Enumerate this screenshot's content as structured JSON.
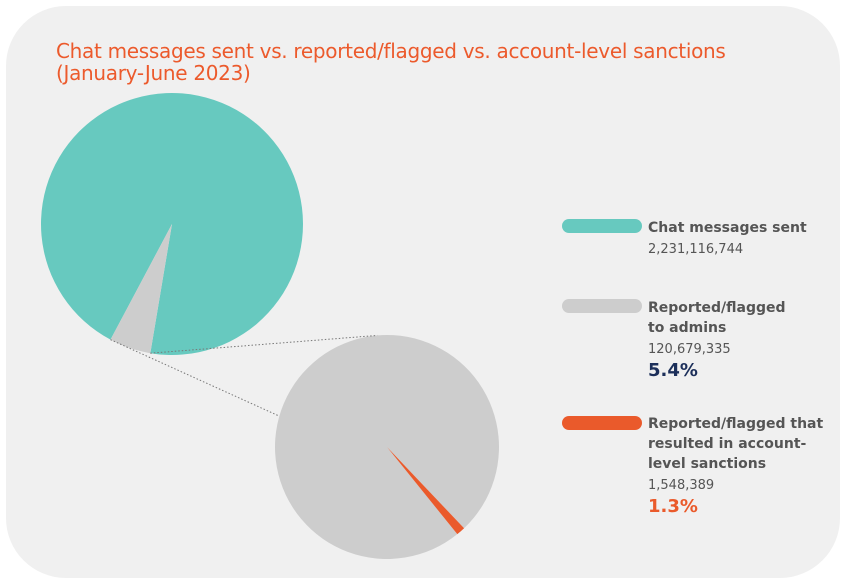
{
  "colors": {
    "background": "#f0f0f0",
    "title": "#ec5a2c",
    "teal": "#67c9bf",
    "gray": "#cdcdcd",
    "orange": "#ea5a2b",
    "navy": "#1c2f5a",
    "text": "#555555"
  },
  "chart_data": {
    "type": "pie",
    "title_lines": [
      "Chat messages sent vs. reported/flagged vs. account-level sanctions",
      "(January-June 2023)"
    ],
    "main_pie": {
      "slices": [
        {
          "name": "Chat messages sent",
          "value": 2231116744,
          "color": "#67c9bf"
        },
        {
          "name": "Reported/flagged to admins",
          "value": 120679335,
          "percent": 5.4,
          "color": "#cdcdcd"
        }
      ]
    },
    "detail_pie": {
      "slices": [
        {
          "name": "Reported/flagged to admins",
          "value": 120679335,
          "color": "#cdcdcd"
        },
        {
          "name": "Reported/flagged that resulted in account-level sanctions",
          "value": 1548389,
          "percent": 1.3,
          "color": "#ea5a2b"
        }
      ]
    }
  },
  "legend": [
    {
      "label_lines": [
        "Chat messages sent"
      ],
      "value": "2,231,116,744",
      "percent": "",
      "color": "#67c9bf",
      "percent_color": ""
    },
    {
      "label_lines": [
        "Reported/flagged",
        "to admins"
      ],
      "value": "120,679,335",
      "percent": "5.4%",
      "color": "#cdcdcd",
      "percent_color": "#1c2f5a"
    },
    {
      "label_lines": [
        "Reported/flagged that",
        "resulted in account-",
        "level sanctions"
      ],
      "value": "1,548,389",
      "percent": "1.3%",
      "color": "#ea5a2b",
      "percent_color": "#ea5a2b"
    }
  ]
}
